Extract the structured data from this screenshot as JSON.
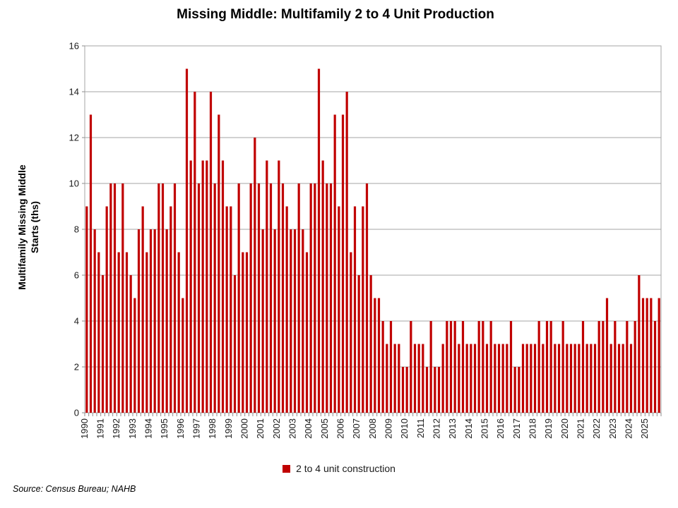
{
  "title": "Missing Middle: Multifamily 2 to 4 Unit Production",
  "y_axis": {
    "title_lines": [
      "Multifamily Missing Middle",
      "Starts (ths)"
    ],
    "ticks": [
      0,
      2,
      4,
      6,
      8,
      10,
      12,
      14,
      16
    ]
  },
  "legend": {
    "label": "2 to 4 unit construction",
    "marker_color": "#C00000"
  },
  "source_note": "Source: Census Bureau; NAHB",
  "chart_data": {
    "type": "bar",
    "title": "Missing Middle: Multifamily 2 to 4 Unit Production",
    "xlabel": "",
    "ylabel": "Multifamily Missing Middle Starts (ths)",
    "ylim": [
      0,
      16
    ],
    "y_tick_step": 2,
    "grid": "horizontal",
    "legend_position": "bottom",
    "bar_color": "#C00000",
    "frequency": "quarterly",
    "series_name": "2 to 4 unit construction",
    "quarters": [
      {
        "year": "1990",
        "values": [
          9,
          13,
          8,
          7
        ]
      },
      {
        "year": "1991",
        "values": [
          6,
          9,
          10,
          10
        ]
      },
      {
        "year": "1992",
        "values": [
          7,
          10,
          7,
          6
        ]
      },
      {
        "year": "1993",
        "values": [
          5,
          8,
          9,
          7
        ]
      },
      {
        "year": "1994",
        "values": [
          8,
          8,
          10,
          10
        ]
      },
      {
        "year": "1995",
        "values": [
          8,
          9,
          10,
          7
        ]
      },
      {
        "year": "1996",
        "values": [
          5,
          15,
          11,
          14
        ]
      },
      {
        "year": "1997",
        "values": [
          10,
          11,
          11,
          14
        ]
      },
      {
        "year": "1998",
        "values": [
          10,
          13,
          11,
          9
        ]
      },
      {
        "year": "1999",
        "values": [
          9,
          6,
          10,
          7
        ]
      },
      {
        "year": "2000",
        "values": [
          7,
          10,
          12,
          10
        ]
      },
      {
        "year": "2001",
        "values": [
          8,
          11,
          10,
          8
        ]
      },
      {
        "year": "2002",
        "values": [
          11,
          10,
          9,
          8
        ]
      },
      {
        "year": "2003",
        "values": [
          8,
          10,
          8,
          7
        ]
      },
      {
        "year": "2004",
        "values": [
          10,
          10,
          15,
          11
        ]
      },
      {
        "year": "2005",
        "values": [
          10,
          10,
          13,
          9
        ]
      },
      {
        "year": "2006",
        "values": [
          13,
          14,
          7,
          9
        ]
      },
      {
        "year": "2007",
        "values": [
          6,
          9,
          10,
          6
        ]
      },
      {
        "year": "2008",
        "values": [
          5,
          5,
          4,
          3
        ]
      },
      {
        "year": "2009",
        "values": [
          4,
          3,
          3,
          2
        ]
      },
      {
        "year": "2010",
        "values": [
          2,
          4,
          3,
          3
        ]
      },
      {
        "year": "2011",
        "values": [
          3,
          2,
          4,
          2
        ]
      },
      {
        "year": "2012",
        "values": [
          2,
          3,
          4,
          4
        ]
      },
      {
        "year": "2013",
        "values": [
          4,
          3,
          4,
          3
        ]
      },
      {
        "year": "2014",
        "values": [
          3,
          3,
          4,
          4
        ]
      },
      {
        "year": "2015",
        "values": [
          3,
          4,
          3,
          3
        ]
      },
      {
        "year": "2016",
        "values": [
          3,
          3,
          4,
          2
        ]
      },
      {
        "year": "2017",
        "values": [
          2,
          3,
          3,
          3
        ]
      },
      {
        "year": "2018",
        "values": [
          3,
          4,
          3,
          4
        ]
      },
      {
        "year": "2019",
        "values": [
          4,
          3,
          3,
          4
        ]
      },
      {
        "year": "2020",
        "values": [
          3,
          3,
          3,
          3
        ]
      },
      {
        "year": "2021",
        "values": [
          4,
          3,
          3,
          3
        ]
      },
      {
        "year": "2022",
        "values": [
          4,
          4,
          5,
          3
        ]
      },
      {
        "year": "2023",
        "values": [
          4,
          3,
          3,
          4
        ]
      },
      {
        "year": "2024",
        "values": [
          3,
          4,
          6,
          5
        ]
      },
      {
        "year": "2025",
        "values": [
          5,
          5,
          4,
          5
        ]
      }
    ]
  },
  "style": {
    "grid_color": "#A6A6A6",
    "axis_color": "#8C8C8C",
    "tick_label_color": "#1a1a1a"
  }
}
